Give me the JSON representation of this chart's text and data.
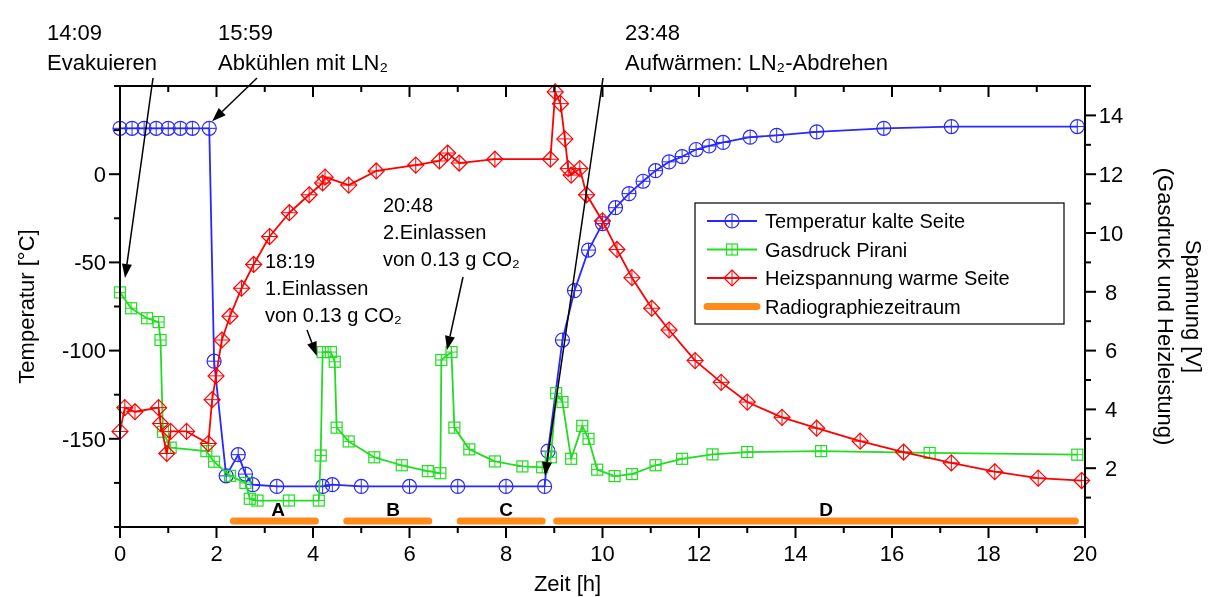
{
  "chart_data": {
    "type": "line",
    "xlabel": "Zeit [h]",
    "ylabel": "Temperatur [°C]",
    "y2label": "Spannung [V]\n(Gasdruck und Heizleistung)",
    "xlim": [
      0,
      20
    ],
    "xticks": [
      0,
      {
        "value": 1,
        "label": null
      },
      2,
      {
        "value": 3,
        "label": null
      },
      4,
      {
        "value": 5,
        "label": null
      },
      6,
      {
        "value": 7,
        "label": null
      },
      8,
      {
        "value": 9,
        "label": null
      },
      10,
      {
        "value": 11,
        "label": null
      },
      12,
      {
        "value": 13,
        "label": null
      },
      14,
      {
        "value": 15,
        "label": null
      },
      16,
      {
        "value": 17,
        "label": null
      },
      18,
      {
        "value": 19,
        "label": null
      },
      20
    ],
    "ylim": [
      -200,
      50
    ],
    "yticks": [
      {
        "value": -200,
        "label": null
      },
      {
        "value": -175,
        "label": null
      },
      -150,
      {
        "value": -125,
        "label": null
      },
      -100,
      {
        "value": -75,
        "label": null
      },
      -50,
      {
        "value": -25,
        "label": null
      },
      0,
      {
        "value": 25,
        "label": null
      },
      {
        "value": 50,
        "label": null
      }
    ],
    "y2lim": [
      0,
      15
    ],
    "y2ticks": [
      {
        "value": 1,
        "label": null
      },
      2,
      {
        "value": 3,
        "label": null
      },
      4,
      {
        "value": 5,
        "label": null
      },
      6,
      {
        "value": 7,
        "label": null
      },
      8,
      {
        "value": 9,
        "label": null
      },
      10,
      {
        "value": 11,
        "label": null
      },
      12,
      {
        "value": 13,
        "label": null
      },
      14,
      {
        "value": 15,
        "label": null
      }
    ],
    "grid": false,
    "legend": "right",
    "series": [
      {
        "name": "Temperatur kalte Seite",
        "color": "#2828ff",
        "marker": "circle",
        "x": [
          0,
          0.25,
          0.5,
          0.75,
          1,
          1.25,
          1.5,
          1.85,
          1.95,
          2.2,
          2.45,
          2.6,
          2.75,
          3.25,
          4.2,
          4.4,
          5,
          6,
          7,
          8,
          8.8,
          8.87,
          9.17,
          9.42,
          9.71,
          10,
          10.27,
          10.55,
          10.84,
          11.1,
          11.38,
          11.65,
          11.94,
          12.21,
          12.5,
          13.06,
          13.61,
          14.44,
          15.83,
          17.23,
          19.84
        ],
        "values": [
          26,
          26,
          26,
          26,
          26,
          26,
          26,
          26,
          -106,
          -171,
          -159,
          -170,
          -176,
          -177,
          -177,
          -176,
          -177,
          -177,
          -177,
          -177,
          -177,
          -157,
          -94,
          -66,
          -43,
          -28,
          -19,
          -11,
          -4,
          2,
          7,
          10,
          14,
          16,
          18,
          21,
          22,
          24,
          26,
          27,
          27
        ]
      },
      {
        "name": "Gasdruck Pirani",
        "color": "#22dd22",
        "marker": "square",
        "axis": "y2",
        "x": [
          0,
          0.23,
          0.56,
          0.8,
          0.84,
          0.89,
          1.05,
          1.79,
          1.95,
          2.28,
          2.6,
          2.69,
          2.85,
          3.5,
          4.12,
          4.16,
          4.2,
          4.37,
          4.45,
          4.49,
          4.74,
          5.27,
          5.84,
          6.38,
          6.64,
          6.66,
          6.87,
          6.93,
          7.24,
          7.77,
          8.34,
          8.75,
          8.93,
          9.04,
          9.17,
          9.35,
          9.58,
          9.71,
          9.89,
          10.25,
          10.61,
          11.1,
          11.65,
          12.28,
          13,
          14.53,
          16.78,
          19.84
        ],
        "values": [
          7.98,
          7.44,
          7.1,
          6.97,
          6.36,
          3.24,
          2.7,
          2.58,
          2.22,
          1.74,
          1.5,
          0.96,
          0.9,
          0.9,
          0.9,
          2.43,
          5.95,
          5.95,
          5.62,
          3.38,
          2.91,
          2.37,
          2.1,
          1.9,
          1.83,
          5.68,
          5.95,
          3.38,
          2.64,
          2.23,
          2.06,
          2.03,
          2.37,
          4.55,
          4.25,
          2.32,
          3.44,
          3.0,
          1.95,
          1.73,
          1.8,
          2.1,
          2.32,
          2.47,
          2.55,
          2.58,
          2.52,
          2.46
        ]
      },
      {
        "name": "Heizspannung warme Seite",
        "color": "#ff0000",
        "marker": "diamond",
        "axis": "y2",
        "x": [
          0,
          0.1,
          0.31,
          0.8,
          0.84,
          0.97,
          1.05,
          1.38,
          1.83,
          1.91,
          1.99,
          2.11,
          2.28,
          2.52,
          2.77,
          3.1,
          3.51,
          3.92,
          4.2,
          4.25,
          4.74,
          5.31,
          6.13,
          6.62,
          6.79,
          7.03,
          7.77,
          8.92,
          9.02,
          9.13,
          9.22,
          9.29,
          9.35,
          9.53,
          9.67,
          10,
          10.3,
          10.61,
          11.02,
          11.38,
          11.92,
          12.46,
          13,
          13.72,
          14.44,
          15.34,
          16.24,
          17.23,
          18.13,
          19.03,
          19.93
        ],
        "values": [
          3.25,
          4.06,
          3.92,
          4.06,
          3.52,
          2.5,
          3.25,
          3.25,
          2.84,
          4.33,
          5.14,
          6.36,
          7.17,
          8.12,
          8.93,
          9.88,
          10.69,
          11.3,
          11.7,
          11.9,
          11.63,
          12.11,
          12.31,
          12.45,
          12.72,
          12.38,
          12.51,
          12.51,
          14.8,
          14.4,
          13.2,
          12.19,
          11.97,
          12.19,
          11.3,
          10.41,
          9.44,
          8.48,
          7.44,
          6.7,
          5.66,
          4.92,
          4.25,
          3.73,
          3.36,
          2.92,
          2.55,
          2.18,
          1.88,
          1.66,
          1.58
        ]
      },
      {
        "name": "Radiographiezeitraum",
        "color": "#ff8c1a",
        "marker": "none",
        "axis": "y2",
        "x": [
          2.35,
          4.05,
          4.4,
          4.7,
          6.4,
          6.7,
          7.05,
          8.75,
          8.9,
          9.05,
          19.8
        ],
        "values": [
          0.2,
          0.2,
          null,
          0.2,
          0.2,
          null,
          0.2,
          0.2,
          null,
          0.2,
          0.2
        ]
      }
    ],
    "annotations": [
      "14:09\nEvakuieren",
      {
        "text": "15:59\nAbkühlen mit LN₂",
        "x": 1.91,
        "y": 30
      },
      {
        "text": "18:19\n1.Einlassen\nvon 0.13 g CO₂",
        "x": 4.08,
        "y": -103
      },
      "20:48\n2.Einlassen\nvon 0.13 g CO₂",
      "23:48\nAufwärmen: LN₂-Abdrehen",
      "A",
      "B",
      "C",
      "D"
    ]
  }
}
